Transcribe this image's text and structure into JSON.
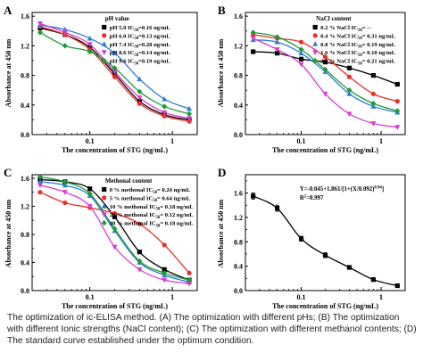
{
  "caption": "The optimization of ic-ELISA method. (A) The optimization with different pHs; (B) The optimization with different Ionic strengths (NaCl content); (C) The optimization with different methanol contents; (D) The standard curve established under the optimum condition.",
  "chart_data": [
    {
      "panel_letter": "A",
      "type": "scatter",
      "xlabel": "The concentration of STG (ng/mL)",
      "ylabel": "Absorbance at 450 nm",
      "xscale": "log",
      "xlim": [
        0.02,
        2
      ],
      "ylim": [
        0.0,
        1.65
      ],
      "xticks": [
        {
          "value": 0.1,
          "label": "0.1"
        },
        {
          "value": 1,
          "label": "1"
        }
      ],
      "yticks": [
        {
          "value": 0.0,
          "label": "0.0"
        },
        {
          "value": 0.4,
          "label": "0.4"
        },
        {
          "value": 0.8,
          "label": "0.8"
        },
        {
          "value": 1.2,
          "label": "1.2"
        },
        {
          "value": 1.6,
          "label": "1.6"
        }
      ],
      "legend_title": "pH value",
      "legend_position": "top-right",
      "x": [
        0.025,
        0.05,
        0.1,
        0.2,
        0.4,
        0.8,
        1.6
      ],
      "series": [
        {
          "label": "pH 5.0",
          "ic50_label": "IC",
          "ic50_sub": "50",
          "ic50_value": "=0.16 ng/mL",
          "color": "#000000",
          "values": [
            1.44,
            1.35,
            1.18,
            0.82,
            0.45,
            0.27,
            0.2
          ]
        },
        {
          "label": "pH 6.0",
          "ic50_label": "IC",
          "ic50_sub": "50",
          "ic50_value": "=0.13 ng/mL",
          "color": "#e8302a",
          "values": [
            1.46,
            1.35,
            1.15,
            0.78,
            0.42,
            0.25,
            0.18
          ]
        },
        {
          "label": "pH 7.4",
          "ic50_label": "IC",
          "ic50_sub": "50",
          "ic50_value": "=0.28 ng/mL",
          "color": "#2d7fd6",
          "values": [
            1.48,
            1.42,
            1.3,
            1.1,
            0.75,
            0.48,
            0.35
          ]
        },
        {
          "label": "pH 8.6",
          "ic50_label": "IC",
          "ic50_sub": "50",
          "ic50_value": "=0.14 ng/mL",
          "color": "#d93ad0",
          "values": [
            1.5,
            1.38,
            1.22,
            0.85,
            0.5,
            0.3,
            0.22
          ]
        },
        {
          "label": "pH 9.6",
          "ic50_label": "IC",
          "ic50_sub": "50",
          "ic50_value": "=0.19 ng/mL",
          "color": "#1e9a3a",
          "values": [
            1.38,
            1.2,
            1.12,
            0.9,
            0.58,
            0.38,
            0.28
          ]
        }
      ]
    },
    {
      "panel_letter": "B",
      "type": "scatter",
      "xlabel": "The concentration of STG (ng/mL)",
      "ylabel": "Absorbance at 450 nm",
      "xscale": "log",
      "xlim": [
        0.02,
        2
      ],
      "ylim": [
        0.0,
        1.65
      ],
      "xticks": [
        {
          "value": 0.1,
          "label": "0.1"
        },
        {
          "value": 1,
          "label": "1"
        }
      ],
      "yticks": [
        {
          "value": 0.0,
          "label": "0.0"
        },
        {
          "value": 0.4,
          "label": "0.4"
        },
        {
          "value": 0.8,
          "label": "0.8"
        },
        {
          "value": 1.2,
          "label": "1.2"
        },
        {
          "value": 1.6,
          "label": "1.6"
        }
      ],
      "legend_title": "NaCl content",
      "legend_position": "top-right",
      "x": [
        0.025,
        0.05,
        0.1,
        0.2,
        0.4,
        0.8,
        1.6
      ],
      "series": [
        {
          "label": "0.2 % NaCl",
          "ic50_label": "IC",
          "ic50_sub": "50",
          "ic50_value": "= --",
          "color": "#000000",
          "values": [
            1.12,
            1.1,
            1.02,
            0.98,
            0.9,
            0.8,
            0.68
          ]
        },
        {
          "label": "0.4 % NaCl",
          "ic50_label": "IC",
          "ic50_sub": "50",
          "ic50_value": "= 0.31 ng/mL",
          "color": "#e8302a",
          "values": [
            1.35,
            1.3,
            1.25,
            1.05,
            0.78,
            0.55,
            0.45
          ]
        },
        {
          "label": "0.8 % NaCl",
          "ic50_label": "IC",
          "ic50_sub": "50",
          "ic50_value": "= 0.19 ng/mL",
          "color": "#2d7fd6",
          "values": [
            1.28,
            1.25,
            1.1,
            0.85,
            0.55,
            0.38,
            0.3
          ]
        },
        {
          "label": "1.6 % NaCl",
          "ic50_label": "IC",
          "ic50_sub": "50",
          "ic50_value": "= 0.10 ng/mL",
          "color": "#d93ad0",
          "values": [
            1.3,
            1.15,
            0.95,
            0.55,
            0.28,
            0.15,
            0.1
          ]
        },
        {
          "label": "3.2 % NaCl",
          "ic50_label": "IC",
          "ic50_sub": "50",
          "ic50_value": "= 0.21 ng/mL",
          "color": "#1e9a3a",
          "values": [
            1.38,
            1.32,
            1.15,
            0.88,
            0.6,
            0.42,
            0.32
          ]
        }
      ]
    },
    {
      "panel_letter": "C",
      "type": "scatter",
      "xlabel": "The concentration of STG (ng/mL)",
      "ylabel": "Absorbance at 450 nm",
      "xscale": "log",
      "xlim": [
        0.02,
        2
      ],
      "ylim": [
        0.0,
        1.65
      ],
      "xticks": [
        {
          "value": 0.1,
          "label": "0.1"
        },
        {
          "value": 1,
          "label": "1"
        }
      ],
      "yticks": [
        {
          "value": 0.0,
          "label": "0.0"
        },
        {
          "value": 0.4,
          "label": "0.4"
        },
        {
          "value": 0.8,
          "label": "0.8"
        },
        {
          "value": 1.2,
          "label": "1.2"
        },
        {
          "value": 1.6,
          "label": "1.6"
        }
      ],
      "legend_title": "Methonal content",
      "legend_position": "top-right",
      "x": [
        0.025,
        0.05,
        0.1,
        0.2,
        0.4,
        0.8,
        1.6
      ],
      "series": [
        {
          "label": "0 %   methonal",
          "ic50_label": "IC",
          "ic50_sub": "50",
          "ic50_value": "= 0.24 ng/mL",
          "color": "#000000",
          "values": [
            1.58,
            1.55,
            1.45,
            1.05,
            0.55,
            0.3,
            0.15
          ]
        },
        {
          "label": "5 %   methonal",
          "ic50_label": "IC",
          "ic50_sub": "50",
          "ic50_value": "= 0.64 ng/mL",
          "color": "#e8302a",
          "values": [
            1.4,
            1.25,
            1.18,
            1.1,
            0.95,
            0.65,
            0.25
          ]
        },
        {
          "label": "10 %  methonal",
          "ic50_label": "IC",
          "ic50_sub": "50",
          "ic50_value": "= 0.18 ng/mL",
          "color": "#2d7fd6",
          "values": [
            1.55,
            1.5,
            1.35,
            0.85,
            0.4,
            0.22,
            0.12
          ]
        },
        {
          "label": "20 %  methonal",
          "ic50_label": "IC",
          "ic50_sub": "50",
          "ic50_value": "= 0.12 ng/mL",
          "color": "#d93ad0",
          "values": [
            1.5,
            1.4,
            1.2,
            0.62,
            0.3,
            0.15,
            0.1
          ]
        },
        {
          "label": "40 %  methonal",
          "ic50_label": "IC",
          "ic50_sub": "50",
          "ic50_value": "= 0.18 ng/mL",
          "color": "#1e9a3a",
          "values": [
            1.62,
            1.55,
            1.38,
            0.88,
            0.42,
            0.25,
            0.15
          ]
        }
      ]
    },
    {
      "panel_letter": "D",
      "type": "scatter",
      "xlabel": "The concentration of STG (ng/mL)",
      "ylabel": "Absorbance at 450 nm",
      "xscale": "log",
      "xlim": [
        0.02,
        2
      ],
      "ylim": [
        0.0,
        1.9
      ],
      "xticks": [
        {
          "value": 0.1,
          "label": "0.1"
        },
        {
          "value": 1,
          "label": "1"
        }
      ],
      "yticks": [
        {
          "value": 0.0,
          "label": "0.0"
        },
        {
          "value": 0.4,
          "label": "0.4"
        },
        {
          "value": 0.8,
          "label": "0.8"
        },
        {
          "value": 1.2,
          "label": "1.2"
        },
        {
          "value": 1.6,
          "label": "1.6"
        }
      ],
      "equation": "Y=-0.045+1.861/[1+(X/0.092)",
      "equation_exp": "0.94",
      "equation_tail": "]",
      "r2_label": "R",
      "r2_exp": "2",
      "r2_value": "=0.997",
      "x": [
        0.025,
        0.05,
        0.1,
        0.2,
        0.4,
        0.8,
        1.6
      ],
      "series": [
        {
          "color": "#000000",
          "values": [
            1.55,
            1.35,
            0.85,
            0.58,
            0.38,
            0.18,
            0.08
          ],
          "errors": [
            0.05,
            0.05,
            0.04,
            0.04,
            0.03,
            0.02,
            0.01
          ]
        }
      ]
    }
  ]
}
